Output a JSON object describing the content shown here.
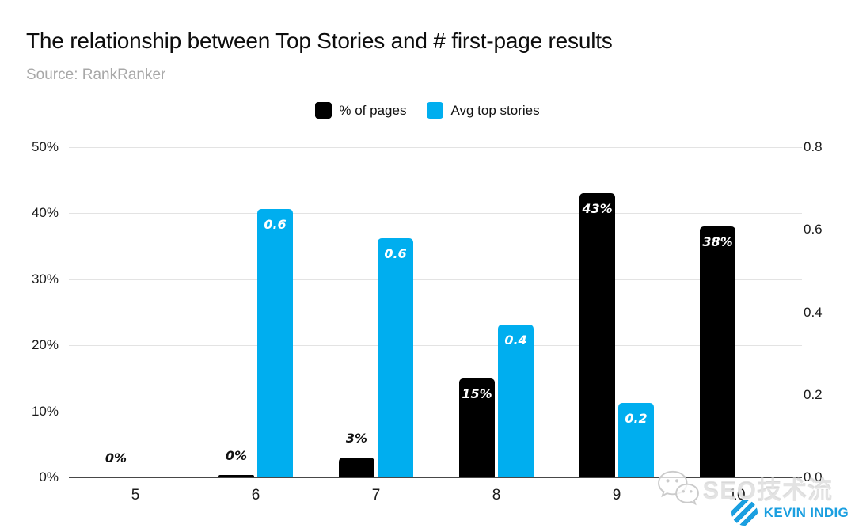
{
  "title": "The relationship between Top Stories and # first-page results",
  "source": "Source: RankRanker",
  "legend": {
    "items": [
      {
        "label": "% of pages",
        "color": "#000000"
      },
      {
        "label": "Avg top stories",
        "color": "#00aeef"
      }
    ]
  },
  "chart_data": {
    "type": "bar",
    "title": "The relationship between Top Stories and # first-page results",
    "subtitle": "Source: RankRanker",
    "categories": [
      "5",
      "6",
      "7",
      "8",
      "9",
      "10"
    ],
    "series": [
      {
        "name": "% of pages",
        "axis": "left",
        "color": "#000000",
        "values": [
          0,
          0.3,
          3,
          15,
          43,
          38
        ],
        "labels": [
          "0%",
          "0%",
          "3%",
          "15%",
          "43%",
          "38%"
        ]
      },
      {
        "name": "Avg top stories",
        "axis": "right",
        "color": "#00aeef",
        "values": [
          0,
          0.65,
          0.58,
          0.37,
          0.18,
          0
        ],
        "labels": [
          "",
          "0.6",
          "0.6",
          "0.4",
          "0.2",
          ""
        ]
      }
    ],
    "left_axis": {
      "ticks": [
        "0%",
        "10%",
        "20%",
        "30%",
        "40%",
        "50%"
      ],
      "min": 0,
      "max": 50
    },
    "right_axis": {
      "ticks": [
        "0.0",
        "0.2",
        "0.4",
        "0.6",
        "0.8"
      ],
      "min": 0,
      "max": 0.8
    },
    "grid": true,
    "legend_position": "top-center",
    "xlabel": "",
    "ylabel_left": "",
    "ylabel_right": ""
  },
  "colors": {
    "gridline": "#e3e3e3",
    "axis_line": "#474747",
    "brand_blue": "#1b9fe0"
  },
  "watermark": {
    "text": "SEO技术流",
    "icon": "wechat-icon"
  },
  "brand": {
    "text": "KEVIN INDIG",
    "icon": "striped-circle-logo"
  }
}
